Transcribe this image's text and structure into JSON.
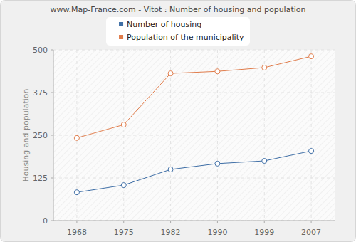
{
  "chart_data": {
    "type": "line",
    "title": "www.Map-France.com - Vitot : Number of housing and population",
    "y_label": "Housing and population",
    "categories": [
      "1968",
      "1975",
      "1982",
      "1990",
      "1999",
      "2007"
    ],
    "series": [
      {
        "name": "Number of housing",
        "color": "#3e6ea6",
        "marker": "circle",
        "values": [
          83,
          104,
          150,
          167,
          175,
          204
        ]
      },
      {
        "name": "Population of the municipality",
        "color": "#e07b4a",
        "marker": "circle",
        "values": [
          242,
          281,
          431,
          437,
          448,
          481
        ]
      }
    ],
    "ylim": [
      0,
      500
    ],
    "yticks": [
      0,
      125,
      250,
      375,
      500
    ],
    "grid": true,
    "legend": "top"
  }
}
